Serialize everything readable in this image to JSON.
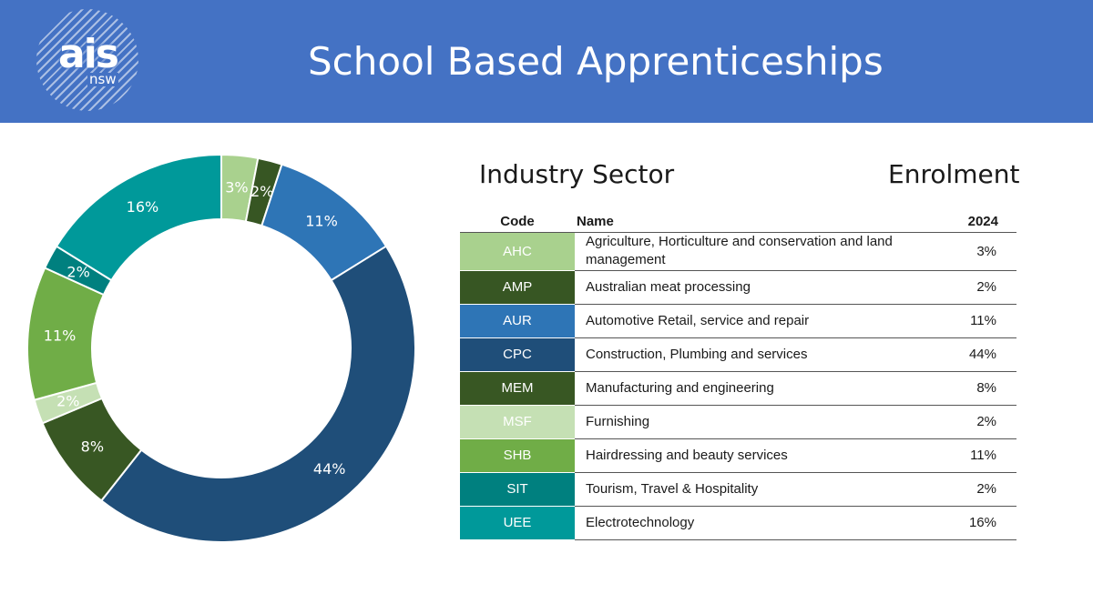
{
  "header": {
    "logo_main": "ais",
    "logo_sub": "nsw",
    "title": "School Based Apprenticeships"
  },
  "headings": {
    "sector": "Industry Sector",
    "enrolment": "Enrolment"
  },
  "table": {
    "columns": [
      "Code",
      "Name",
      "2024"
    ],
    "rows": [
      {
        "code": "AHC",
        "name": "Agriculture, Horticulture and conservation and land management",
        "value": "3%",
        "color": "#a9d18e"
      },
      {
        "code": "AMP",
        "name": "Australian meat processing",
        "value": "2%",
        "color": "#375623"
      },
      {
        "code": "AUR",
        "name": "Automotive Retail, service and repair",
        "value": "11%",
        "color": "#2e75b6"
      },
      {
        "code": "CPC",
        "name": "Construction, Plumbing and services",
        "value": "44%",
        "color": "#1f4e79"
      },
      {
        "code": "MEM",
        "name": "Manufacturing and engineering",
        "value": "8%",
        "color": "#385723"
      },
      {
        "code": "MSF",
        "name": "Furnishing",
        "value": "2%",
        "color": "#c5e0b4"
      },
      {
        "code": "SHB",
        "name": "Hairdressing and beauty services",
        "value": "11%",
        "color": "#70ad47"
      },
      {
        "code": "SIT",
        "name": "Tourism, Travel & Hospitality",
        "value": "2%",
        "color": "#00807f"
      },
      {
        "code": "UEE",
        "name": "Electrotechnology",
        "value": "16%",
        "color": "#00999a"
      }
    ]
  },
  "chart_data": {
    "type": "pie",
    "subtype": "doughnut",
    "categories": [
      "AHC",
      "AMP",
      "AUR",
      "CPC",
      "MEM",
      "MSF",
      "SHB",
      "SIT",
      "UEE"
    ],
    "values": [
      3,
      2,
      11,
      44,
      8,
      2,
      11,
      2,
      16
    ],
    "labels": [
      "3%",
      "2%",
      "11%",
      "44%",
      "8%",
      "2%",
      "11%",
      "2%",
      "16%"
    ],
    "colors": [
      "#a9d18e",
      "#375623",
      "#2e75b6",
      "#1f4e79",
      "#385723",
      "#c5e0b4",
      "#70ad47",
      "#00807f",
      "#00999a"
    ],
    "start": "top",
    "direction": "clockwise",
    "legend": "none"
  }
}
